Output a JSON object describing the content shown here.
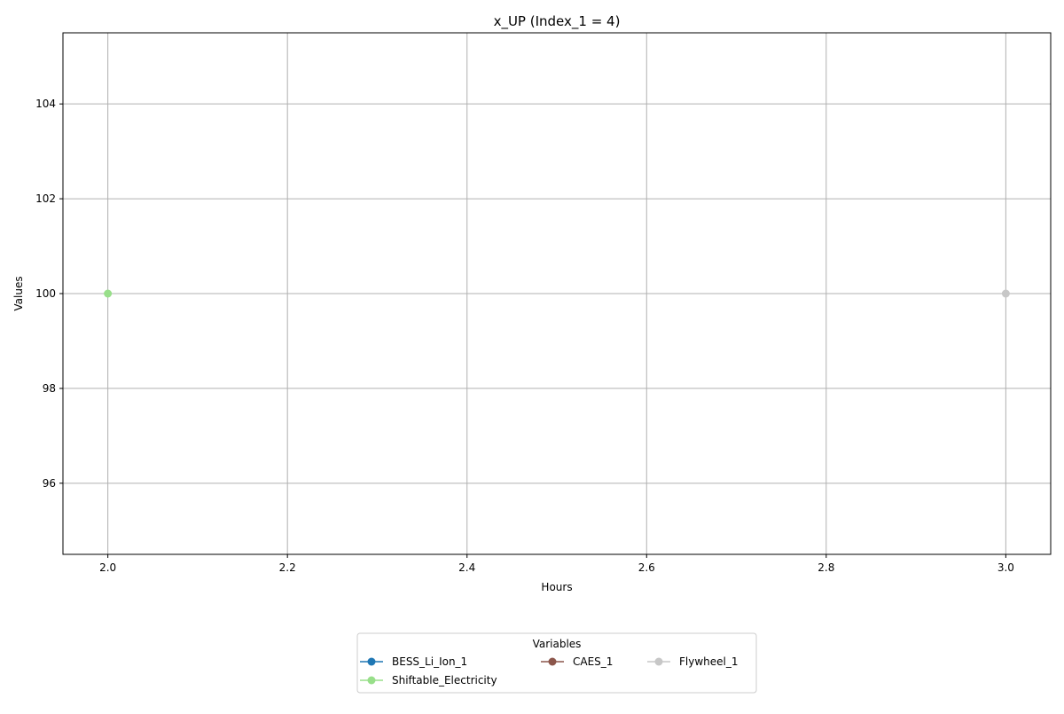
{
  "chart_data": {
    "type": "line",
    "title": "x_UP (Index_1 = 4)",
    "xlabel": "Hours",
    "ylabel": "Values",
    "xlim": [
      1.95,
      3.05
    ],
    "ylim": [
      94.5,
      105.5
    ],
    "xticks": [
      2.0,
      2.2,
      2.4,
      2.6,
      2.8,
      3.0
    ],
    "xtick_labels": [
      "2.0",
      "2.2",
      "2.4",
      "2.6",
      "2.8",
      "3.0"
    ],
    "yticks": [
      96,
      98,
      100,
      102,
      104
    ],
    "ytick_labels": [
      "96",
      "98",
      "100",
      "102",
      "104"
    ],
    "grid": true,
    "legend": {
      "title": "Variables",
      "placement": "bottom-center",
      "columns": 3
    },
    "series": [
      {
        "name": "BESS_Li_Ion_1",
        "color": "#1f77b4",
        "points": []
      },
      {
        "name": "Shiftable_Electricity",
        "color": "#98df8a",
        "points": [
          [
            2.0,
            100
          ]
        ]
      },
      {
        "name": "CAES_1",
        "color": "#8c564b",
        "points": []
      },
      {
        "name": "Flywheel_1",
        "color": "#c7c7c7",
        "points": [
          [
            3.0,
            100
          ]
        ]
      }
    ]
  }
}
